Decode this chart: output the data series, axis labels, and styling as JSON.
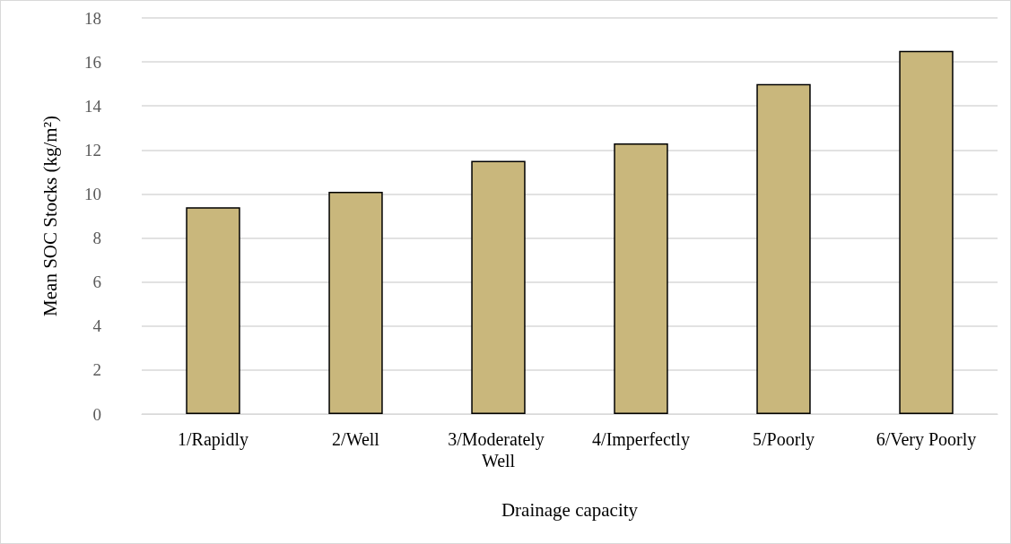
{
  "chart_data": {
    "type": "bar",
    "xlabel": "Drainage capacity",
    "ylabel": "Mean SOC Stocks (kg/m²)",
    "categories": [
      "1/Rapidly",
      "2/Well",
      "3/Moderately Well",
      "4/Imperfectly",
      "5/Poorly",
      "6/Very Poorly"
    ],
    "values": [
      9.4,
      10.1,
      11.5,
      12.3,
      15.0,
      16.5
    ],
    "color": "#c9b77c",
    "ylim": [
      0,
      18
    ],
    "yticks": [
      0,
      2,
      4,
      6,
      8,
      10,
      12,
      14,
      16,
      18
    ],
    "grid": "y"
  }
}
